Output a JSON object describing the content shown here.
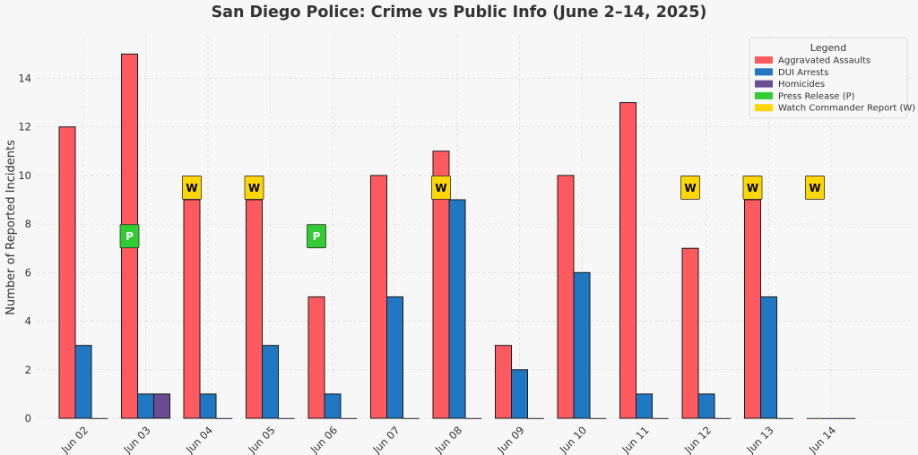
{
  "chart_data": {
    "type": "bar",
    "title": "San Diego Police: Crime vs Public Info (June 2–14, 2025)",
    "xlabel": "",
    "ylabel": "Number of Reported Incidents",
    "ylim": [
      0,
      15.75
    ],
    "yticks": [
      0,
      2,
      4,
      6,
      8,
      10,
      12,
      14
    ],
    "grid": true,
    "legend_title": "Legend",
    "legend_position": "top-right",
    "categories": [
      "Jun 02",
      "Jun 03",
      "Jun 04",
      "Jun 05",
      "Jun 06",
      "Jun 07",
      "Jun 08",
      "Jun 09",
      "Jun 10",
      "Jun 11",
      "Jun 12",
      "Jun 13",
      "Jun 14"
    ],
    "series": [
      {
        "name": "Aggravated Assaults",
        "color": "#ff5a5f",
        "values": [
          12,
          15,
          9,
          9,
          5,
          10,
          11,
          3,
          10,
          13,
          7,
          9,
          0
        ]
      },
      {
        "name": "DUI Arrests",
        "color": "#1f78c1",
        "values": [
          3,
          1,
          1,
          3,
          1,
          5,
          9,
          2,
          6,
          1,
          1,
          5,
          0
        ]
      },
      {
        "name": "Homicides",
        "color": "#6a4c93",
        "values": [
          0,
          1,
          0,
          0,
          0,
          0,
          0,
          0,
          0,
          0,
          0,
          0,
          0
        ]
      }
    ],
    "marker_legend": [
      {
        "name": "Press Release (P)",
        "color": "#33cc33"
      },
      {
        "name": "Watch Commander Report (W)",
        "color": "#ffd700"
      }
    ],
    "markers": [
      {
        "category": "Jun 03",
        "type": "P",
        "label": "P",
        "y": 7.5,
        "color": "#33cc33",
        "text_color": "#ffffff"
      },
      {
        "category": "Jun 04",
        "type": "W",
        "label": "W",
        "y": 9.5,
        "color": "#ffd700",
        "text_color": "#000000"
      },
      {
        "category": "Jun 05",
        "type": "W",
        "label": "W",
        "y": 9.5,
        "color": "#ffd700",
        "text_color": "#000000"
      },
      {
        "category": "Jun 06",
        "type": "P",
        "label": "P",
        "y": 7.5,
        "color": "#33cc33",
        "text_color": "#ffffff"
      },
      {
        "category": "Jun 08",
        "type": "W",
        "label": "W",
        "y": 9.5,
        "color": "#ffd700",
        "text_color": "#000000"
      },
      {
        "category": "Jun 12",
        "type": "W",
        "label": "W",
        "y": 9.5,
        "color": "#ffd700",
        "text_color": "#000000"
      },
      {
        "category": "Jun 13",
        "type": "W",
        "label": "W",
        "y": 9.5,
        "color": "#ffd700",
        "text_color": "#000000"
      },
      {
        "category": "Jun 14",
        "type": "W",
        "label": "W",
        "y": 9.5,
        "color": "#ffd700",
        "text_color": "#000000"
      }
    ]
  }
}
